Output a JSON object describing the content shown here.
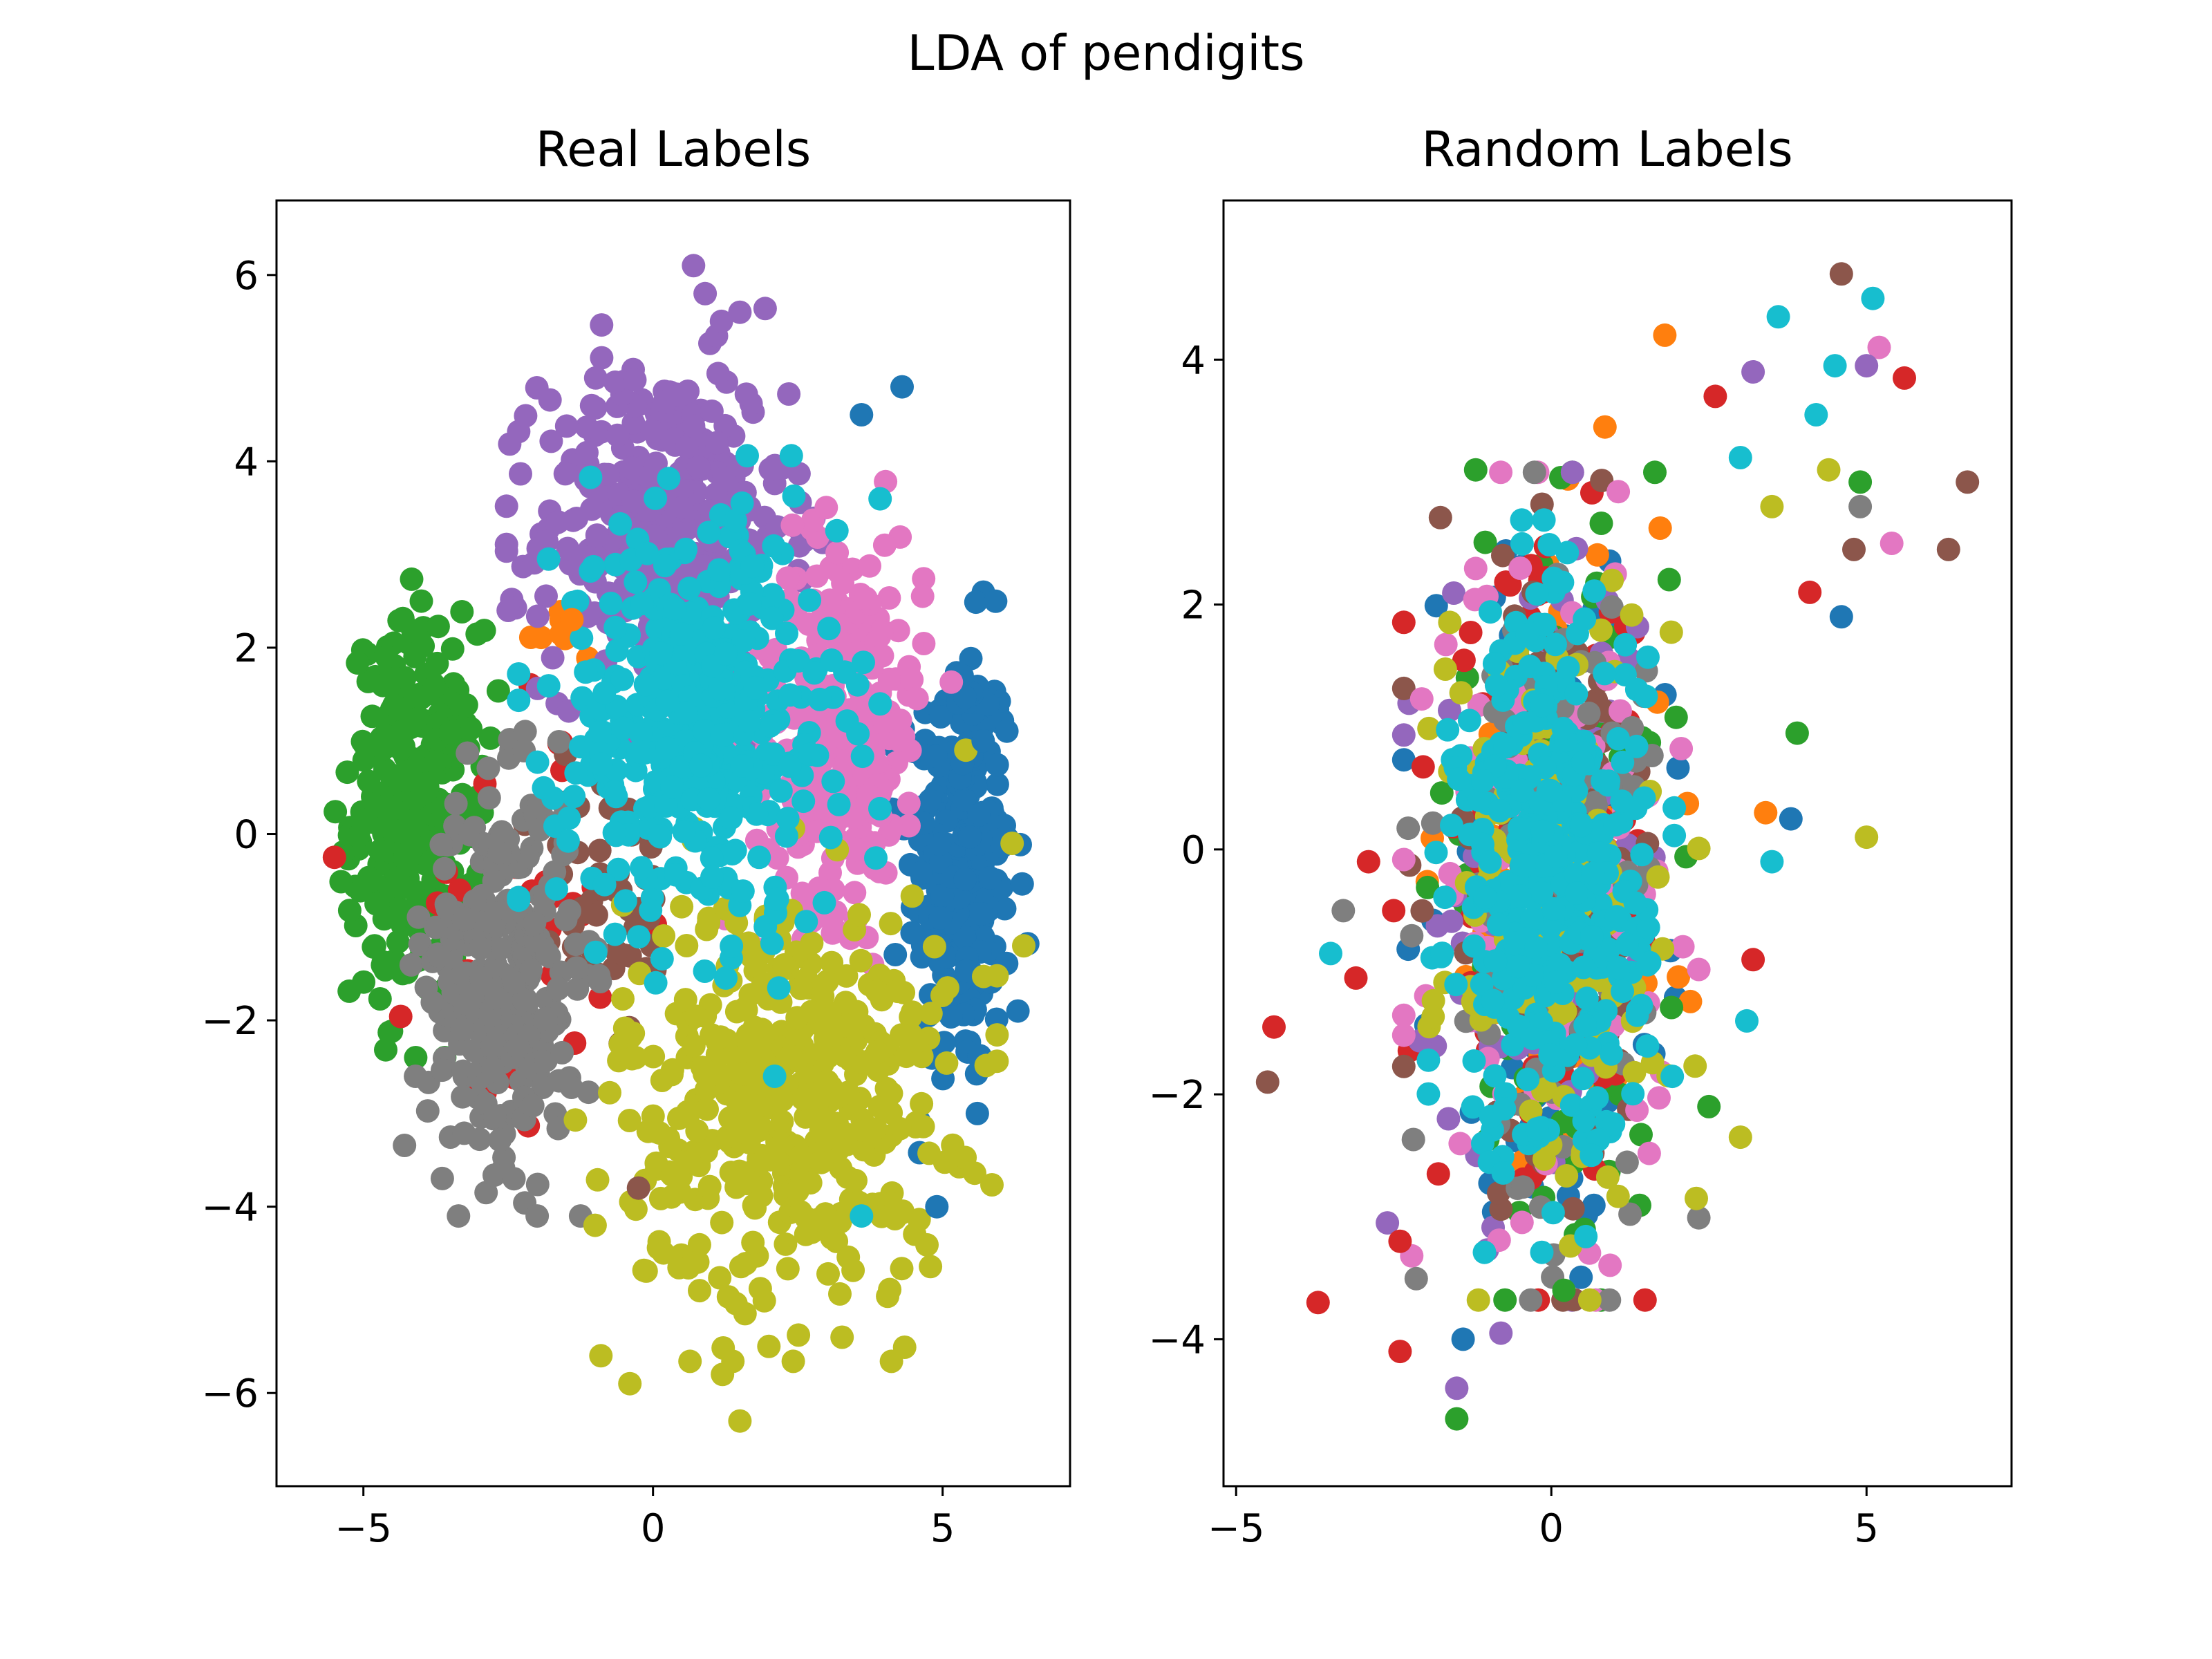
{
  "figure": {
    "suptitle": "LDA of pendigits"
  },
  "palette": [
    "#1f77b4",
    "#ff7f0e",
    "#2ca02c",
    "#d62728",
    "#9467bd",
    "#8c564b",
    "#e377c2",
    "#7f7f7f",
    "#bcbd22",
    "#17becf"
  ],
  "chart_data": [
    {
      "type": "scatter",
      "title": "Real Labels",
      "xlabel": "",
      "ylabel": "",
      "xlim": [
        -6.5,
        7.2
      ],
      "ylim": [
        -7.0,
        6.8
      ],
      "xticks": [
        -5,
        0,
        5
      ],
      "yticks": [
        -6,
        -4,
        -2,
        0,
        2,
        4,
        6
      ],
      "xticklabels": [
        "−5",
        "0",
        "5"
      ],
      "yticklabels": [
        "−6",
        "−4",
        "−2",
        "0",
        "2",
        "4",
        "6"
      ],
      "grid": false,
      "clusters": [
        {
          "class": 0,
          "cx": 5.3,
          "cy": -0.3,
          "sx": 0.45,
          "sy": 1.2,
          "n": 260
        },
        {
          "class": 1,
          "cx": -1.5,
          "cy": 2.2,
          "sx": 0.35,
          "sy": 0.3,
          "n": 10
        },
        {
          "class": 2,
          "cx": -4.1,
          "cy": 0.2,
          "sx": 0.55,
          "sy": 1.0,
          "n": 300
        },
        {
          "class": 3,
          "cx": -2.3,
          "cy": -0.8,
          "sx": 0.9,
          "sy": 1.2,
          "n": 35
        },
        {
          "class": 4,
          "cx": 0.2,
          "cy": 3.3,
          "sx": 1.05,
          "sy": 0.9,
          "n": 380
        },
        {
          "class": 5,
          "cx": -0.8,
          "cy": -0.8,
          "sx": 0.6,
          "sy": 0.8,
          "n": 50
        },
        {
          "class": 6,
          "cx": 3.2,
          "cy": 1.2,
          "sx": 0.75,
          "sy": 1.0,
          "n": 300
        },
        {
          "class": 7,
          "cx": -2.6,
          "cy": -1.5,
          "sx": 0.65,
          "sy": 1.0,
          "n": 320
        },
        {
          "class": 8,
          "cx": 2.3,
          "cy": -2.8,
          "sx": 1.4,
          "sy": 1.1,
          "n": 440
        },
        {
          "class": 9,
          "cx": 0.8,
          "cy": 1.2,
          "sx": 1.2,
          "sy": 1.1,
          "n": 440
        }
      ],
      "points": [
        {
          "x": 0.7,
          "y": 6.1,
          "class": 4
        },
        {
          "x": 0.9,
          "y": 5.8,
          "class": 4
        },
        {
          "x": 1.5,
          "y": 5.6,
          "class": 4
        },
        {
          "x": 4.3,
          "y": 4.8,
          "class": 0
        },
        {
          "x": 3.6,
          "y": 4.5,
          "class": 0
        },
        {
          "x": 4.0,
          "y": 3.1,
          "class": 6
        },
        {
          "x": -5.5,
          "y": -0.25,
          "class": 3
        },
        {
          "x": -4.6,
          "y": 1.9,
          "class": 2
        },
        {
          "x": -4.0,
          "y": 2.5,
          "class": 2
        },
        {
          "x": 4.9,
          "y": -4.0,
          "class": 0
        },
        {
          "x": 5.6,
          "y": -3.0,
          "class": 0
        },
        {
          "x": 6.3,
          "y": -1.9,
          "class": 0
        },
        {
          "x": -2.0,
          "y": -4.1,
          "class": 7
        },
        {
          "x": -2.4,
          "y": -3.7,
          "class": 7
        },
        {
          "x": -4.1,
          "y": -2.6,
          "class": 7
        },
        {
          "x": -0.25,
          "y": -3.8,
          "class": 5
        },
        {
          "x": 3.6,
          "y": -4.1,
          "class": 9
        },
        {
          "x": 2.1,
          "y": -2.6,
          "class": 9
        },
        {
          "x": -1.0,
          "y": -4.2,
          "class": 8
        },
        {
          "x": -0.9,
          "y": -5.6,
          "class": 8
        },
        {
          "x": -0.4,
          "y": -5.9,
          "class": 8
        },
        {
          "x": 1.5,
          "y": -6.3,
          "class": 8
        },
        {
          "x": 2.0,
          "y": -5.5,
          "class": 8
        },
        {
          "x": 1.2,
          "y": -5.8,
          "class": 8
        },
        {
          "x": 6.4,
          "y": -1.2,
          "class": 8
        },
        {
          "x": 6.2,
          "y": -0.1,
          "class": 8
        },
        {
          "x": 5.4,
          "y": 0.9,
          "class": 8
        },
        {
          "x": 5.7,
          "y": 1.0,
          "class": 0
        },
        {
          "x": -1.4,
          "y": 2.3,
          "class": 1
        },
        {
          "x": -2.5,
          "y": 2.4,
          "class": 4
        }
      ]
    },
    {
      "type": "scatter",
      "title": "Random Labels",
      "xlabel": "",
      "ylabel": "",
      "xlim": [
        -5.2,
        7.3
      ],
      "ylim": [
        -5.2,
        5.3
      ],
      "xticks": [
        -5,
        0,
        5
      ],
      "yticks": [
        -4,
        -2,
        0,
        2,
        4
      ],
      "xticklabels": [
        "−5",
        "0",
        "5"
      ],
      "yticklabels": [
        "−4",
        "−2",
        "0",
        "2",
        "4"
      ],
      "grid": false,
      "clusters": [
        {
          "class": 0,
          "cx": 0.0,
          "cy": -0.3,
          "sx": 0.9,
          "sy": 1.3,
          "n": 110
        },
        {
          "class": 1,
          "cx": 0.0,
          "cy": -0.3,
          "sx": 0.9,
          "sy": 1.3,
          "n": 110
        },
        {
          "class": 2,
          "cx": 0.0,
          "cy": -0.3,
          "sx": 0.9,
          "sy": 1.3,
          "n": 110
        },
        {
          "class": 3,
          "cx": 0.0,
          "cy": -0.3,
          "sx": 0.9,
          "sy": 1.3,
          "n": 110
        },
        {
          "class": 4,
          "cx": 0.0,
          "cy": -0.3,
          "sx": 0.9,
          "sy": 1.3,
          "n": 110
        },
        {
          "class": 5,
          "cx": 0.0,
          "cy": -0.3,
          "sx": 0.9,
          "sy": 1.3,
          "n": 110
        },
        {
          "class": 6,
          "cx": 0.0,
          "cy": -0.3,
          "sx": 0.9,
          "sy": 1.3,
          "n": 110
        },
        {
          "class": 7,
          "cx": 0.0,
          "cy": -0.3,
          "sx": 0.9,
          "sy": 1.3,
          "n": 110
        },
        {
          "class": 8,
          "cx": 0.0,
          "cy": -0.3,
          "sx": 0.9,
          "sy": 1.3,
          "n": 130
        },
        {
          "class": 9,
          "cx": 0.0,
          "cy": -0.3,
          "sx": 0.75,
          "sy": 1.15,
          "n": 380
        }
      ],
      "points": [
        {
          "x": 4.6,
          "y": 4.7,
          "class": 5
        },
        {
          "x": 5.1,
          "y": 4.5,
          "class": 9
        },
        {
          "x": 3.6,
          "y": 4.35,
          "class": 9
        },
        {
          "x": 1.8,
          "y": 4.2,
          "class": 1
        },
        {
          "x": 5.2,
          "y": 4.1,
          "class": 6
        },
        {
          "x": 4.5,
          "y": 3.95,
          "class": 9
        },
        {
          "x": 3.2,
          "y": 3.9,
          "class": 4
        },
        {
          "x": 5.6,
          "y": 3.85,
          "class": 3
        },
        {
          "x": 5.0,
          "y": 3.95,
          "class": 4
        },
        {
          "x": 2.6,
          "y": 3.7,
          "class": 3
        },
        {
          "x": 4.2,
          "y": 3.55,
          "class": 9
        },
        {
          "x": 0.85,
          "y": 3.45,
          "class": 1
        },
        {
          "x": 6.6,
          "y": 3.0,
          "class": 5
        },
        {
          "x": 4.9,
          "y": 3.0,
          "class": 2
        },
        {
          "x": -1.2,
          "y": 3.1,
          "class": 2
        },
        {
          "x": 4.4,
          "y": 3.1,
          "class": 8
        },
        {
          "x": 3.0,
          "y": 3.2,
          "class": 9
        },
        {
          "x": 6.3,
          "y": 2.45,
          "class": 5
        },
        {
          "x": 5.4,
          "y": 2.5,
          "class": 6
        },
        {
          "x": 4.8,
          "y": 2.45,
          "class": 5
        },
        {
          "x": 4.9,
          "y": 2.8,
          "class": 7
        },
        {
          "x": 5.0,
          "y": 0.1,
          "class": 8
        },
        {
          "x": 3.4,
          "y": 0.3,
          "class": 1
        },
        {
          "x": 3.9,
          "y": 0.95,
          "class": 2
        },
        {
          "x": 3.5,
          "y": 2.8,
          "class": 8
        },
        {
          "x": 4.6,
          "y": 1.9,
          "class": 0
        },
        {
          "x": 4.1,
          "y": 2.1,
          "class": 3
        },
        {
          "x": -4.5,
          "y": -1.9,
          "class": 5
        },
        {
          "x": -4.4,
          "y": -1.45,
          "class": 3
        },
        {
          "x": -3.7,
          "y": -3.7,
          "class": 3
        },
        {
          "x": -2.4,
          "y": -4.1,
          "class": 3
        },
        {
          "x": -1.5,
          "y": -4.65,
          "class": 2
        },
        {
          "x": -1.5,
          "y": -4.4,
          "class": 4
        },
        {
          "x": -1.4,
          "y": -4.0,
          "class": 0
        },
        {
          "x": -0.8,
          "y": -3.95,
          "class": 4
        },
        {
          "x": 0.2,
          "y": -3.6,
          "class": 2
        },
        {
          "x": -3.5,
          "y": -0.85,
          "class": 9
        },
        {
          "x": -3.3,
          "y": -0.5,
          "class": 7
        },
        {
          "x": -3.1,
          "y": -1.05,
          "class": 3
        },
        {
          "x": -2.9,
          "y": -0.1,
          "class": 3
        },
        {
          "x": -2.5,
          "y": -0.5,
          "class": 3
        },
        {
          "x": 3.1,
          "y": -1.4,
          "class": 9
        },
        {
          "x": 3.2,
          "y": -0.9,
          "class": 3
        },
        {
          "x": 3.0,
          "y": -2.35,
          "class": 8
        },
        {
          "x": 2.5,
          "y": -2.1,
          "class": 2
        },
        {
          "x": 2.3,
          "y": -2.85,
          "class": 8
        },
        {
          "x": -2.6,
          "y": -3.05,
          "class": 4
        },
        {
          "x": -2.4,
          "y": -3.2,
          "class": 3
        },
        {
          "x": 3.5,
          "y": -0.1,
          "class": 9
        },
        {
          "x": 3.8,
          "y": 0.25,
          "class": 0
        }
      ]
    }
  ]
}
